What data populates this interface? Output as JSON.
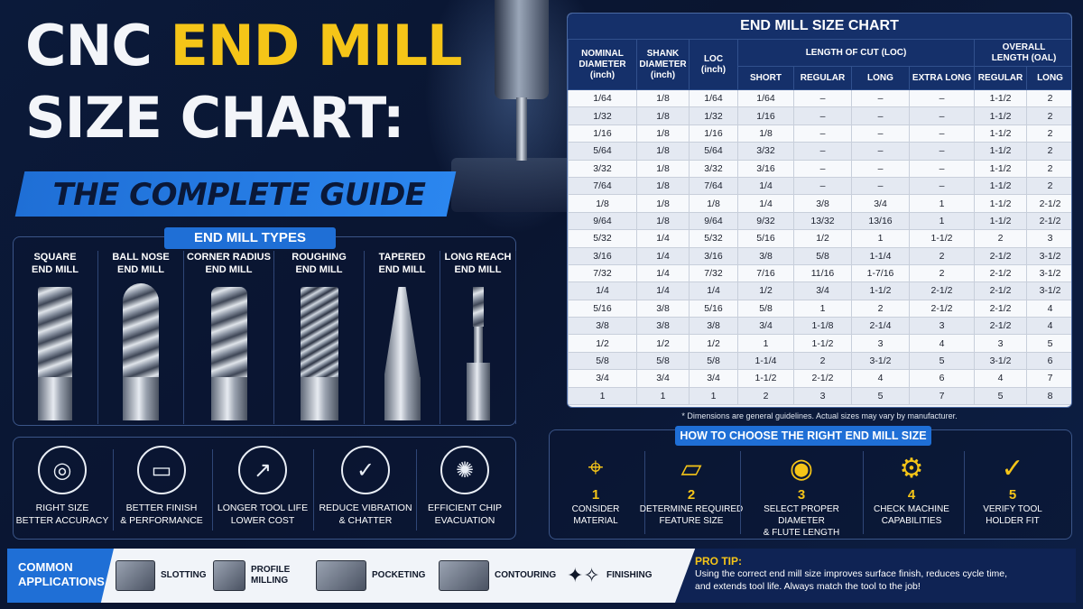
{
  "title": {
    "cnc": "CNC",
    "end_mill": "END MILL",
    "line2": "SIZE CHART:",
    "guide": "THE COMPLETE GUIDE"
  },
  "types": {
    "header": "END MILL TYPES",
    "items": [
      {
        "line1": "SQUARE",
        "line2": "END MILL"
      },
      {
        "line1": "BALL NOSE",
        "line2": "END MILL"
      },
      {
        "line1": "CORNER RADIUS",
        "line2": "END MILL"
      },
      {
        "line1": "ROUGHING",
        "line2": "END MILL"
      },
      {
        "line1": "TAPERED",
        "line2": "END MILL"
      },
      {
        "line1": "LONG REACH",
        "line2": "END MILL"
      }
    ]
  },
  "benefits": [
    {
      "icon": "target-icon",
      "glyph": "◎",
      "line1": "RIGHT SIZE",
      "line2": "BETTER ACCURACY"
    },
    {
      "icon": "ruler-icon",
      "glyph": "▭",
      "line1": "BETTER FINISH",
      "line2": "& PERFORMANCE"
    },
    {
      "icon": "growth-chart-icon",
      "glyph": "↗",
      "line1": "LONGER TOOL LIFE",
      "line2": "LOWER COST"
    },
    {
      "icon": "shield-check-icon",
      "glyph": "✓",
      "line1": "REDUCE VIBRATION",
      "line2": "& CHATTER"
    },
    {
      "icon": "chips-icon",
      "glyph": "✺",
      "line1": "EFFICIENT CHIP",
      "line2": "EVACUATION"
    }
  ],
  "table": {
    "title": "END MILL SIZE CHART",
    "headers": {
      "nominal": [
        "NOMINAL",
        "DIAMETER",
        "(inch)"
      ],
      "shank": [
        "SHANK",
        "DIAMETER",
        "(inch)"
      ],
      "loc": [
        "LOC",
        "(inch)"
      ],
      "loc_group": "LENGTH OF CUT (LOC)",
      "oal_group": [
        "OVERALL",
        "LENGTH (OAL)"
      ],
      "short": "SHORT",
      "regular": "REGULAR",
      "long": "LONG",
      "extra_long": "EXTRA LONG",
      "oal_regular": "REGULAR",
      "oal_long": "LONG"
    },
    "rows": [
      [
        "1/64",
        "1/8",
        "1/64",
        "1/64",
        "–",
        "–",
        "–",
        "1-1/2",
        "2"
      ],
      [
        "1/32",
        "1/8",
        "1/32",
        "1/16",
        "–",
        "–",
        "–",
        "1-1/2",
        "2"
      ],
      [
        "1/16",
        "1/8",
        "1/16",
        "1/8",
        "–",
        "–",
        "–",
        "1-1/2",
        "2"
      ],
      [
        "5/64",
        "1/8",
        "5/64",
        "3/32",
        "–",
        "–",
        "–",
        "1-1/2",
        "2"
      ],
      [
        "3/32",
        "1/8",
        "3/32",
        "3/16",
        "–",
        "–",
        "–",
        "1-1/2",
        "2"
      ],
      [
        "7/64",
        "1/8",
        "7/64",
        "1/4",
        "–",
        "–",
        "–",
        "1-1/2",
        "2"
      ],
      [
        "1/8",
        "1/8",
        "1/8",
        "1/4",
        "3/8",
        "3/4",
        "1",
        "1-1/2",
        "2-1/2"
      ],
      [
        "9/64",
        "1/8",
        "9/64",
        "9/32",
        "13/32",
        "13/16",
        "1",
        "1-1/2",
        "2-1/2"
      ],
      [
        "5/32",
        "1/4",
        "5/32",
        "5/16",
        "1/2",
        "1",
        "1-1/2",
        "2",
        "3"
      ],
      [
        "3/16",
        "1/4",
        "3/16",
        "3/8",
        "5/8",
        "1-1/4",
        "2",
        "2-1/2",
        "3-1/2"
      ],
      [
        "7/32",
        "1/4",
        "7/32",
        "7/16",
        "11/16",
        "1-7/16",
        "2",
        "2-1/2",
        "3-1/2"
      ],
      [
        "1/4",
        "1/4",
        "1/4",
        "1/2",
        "3/4",
        "1-1/2",
        "2-1/2",
        "2-1/2",
        "3-1/2"
      ],
      [
        "5/16",
        "3/8",
        "5/16",
        "5/8",
        "1",
        "2",
        "2-1/2",
        "2-1/2",
        "4"
      ],
      [
        "3/8",
        "3/8",
        "3/8",
        "3/4",
        "1-1/8",
        "2-1/4",
        "3",
        "2-1/2",
        "4"
      ],
      [
        "1/2",
        "1/2",
        "1/2",
        "1",
        "1-1/2",
        "3",
        "4",
        "3",
        "5"
      ],
      [
        "5/8",
        "5/8",
        "5/8",
        "1-1/4",
        "2",
        "3-1/2",
        "5",
        "3-1/2",
        "6"
      ],
      [
        "3/4",
        "3/4",
        "3/4",
        "1-1/2",
        "2-1/2",
        "4",
        "6",
        "4",
        "7"
      ],
      [
        "1",
        "1",
        "1",
        "2",
        "3",
        "5",
        "7",
        "5",
        "8"
      ]
    ],
    "footnote": "* Dimensions are general guidelines. Actual sizes may vary by manufacturer."
  },
  "choose": {
    "header": "HOW TO CHOOSE THE RIGHT END MILL SIZE",
    "steps": [
      {
        "num": "1",
        "icon": "crosshair-icon",
        "glyph": "⌖",
        "line1": "CONSIDER",
        "line2": "MATERIAL"
      },
      {
        "num": "2",
        "icon": "ruler-icon",
        "glyph": "▱",
        "line1": "DETERMINE REQUIRED",
        "line2": "FEATURE SIZE"
      },
      {
        "num": "3",
        "icon": "coins-icon",
        "glyph": "◉",
        "line1": "SELECT PROPER DIAMETER",
        "line2": "& FLUTE LENGTH"
      },
      {
        "num": "4",
        "icon": "machine-icon",
        "glyph": "⚙",
        "line1": "CHECK MACHINE",
        "line2": "CAPABILITIES"
      },
      {
        "num": "5",
        "icon": "check-circle-icon",
        "glyph": "✓",
        "line1": "VERIFY TOOL",
        "line2": "HOLDER FIT"
      }
    ]
  },
  "applications": {
    "label_line1": "COMMON",
    "label_line2": "APPLICATIONS",
    "items": [
      {
        "icon": "slotting-icon",
        "line1": "SLOTTING",
        "line2": ""
      },
      {
        "icon": "profile-milling-icon",
        "line1": "PROFILE",
        "line2": "MILLING"
      },
      {
        "icon": "pocketing-icon",
        "line1": "POCKETING",
        "line2": ""
      },
      {
        "icon": "contouring-icon",
        "line1": "CONTOURING",
        "line2": ""
      },
      {
        "icon": "finishing-icon",
        "line1": "FINISHING",
        "line2": ""
      }
    ]
  },
  "pro_tip": {
    "title": "PRO TIP:",
    "line1": "Using the correct end mill size improves surface finish, reduces cycle time,",
    "line2": "and extends tool life. Always match the tool to the job!"
  },
  "colors": {
    "accent_yellow": "#f5c518",
    "accent_blue": "#1f6fd6",
    "navy": "#0b1a3a"
  }
}
